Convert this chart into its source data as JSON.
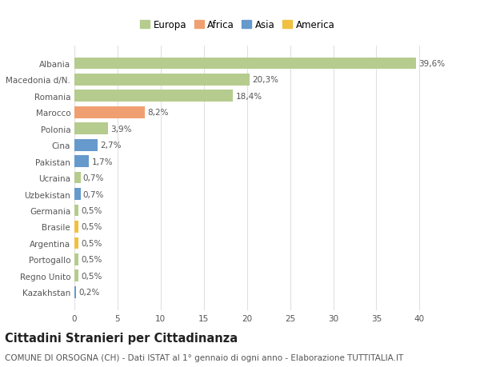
{
  "title": "Cittadini Stranieri per Cittadinanza",
  "subtitle": "COMUNE DI ORSOGNA (CH) - Dati ISTAT al 1° gennaio di ogni anno - Elaborazione TUTTITALIA.IT",
  "categories": [
    "Albania",
    "Macedonia d/N.",
    "Romania",
    "Marocco",
    "Polonia",
    "Cina",
    "Pakistan",
    "Ucraina",
    "Uzbekistan",
    "Germania",
    "Brasile",
    "Argentina",
    "Portogallo",
    "Regno Unito",
    "Kazakhstan"
  ],
  "values": [
    39.6,
    20.3,
    18.4,
    8.2,
    3.9,
    2.7,
    1.7,
    0.7,
    0.7,
    0.5,
    0.5,
    0.5,
    0.5,
    0.5,
    0.2
  ],
  "labels": [
    "39,6%",
    "20,3%",
    "18,4%",
    "8,2%",
    "3,9%",
    "2,7%",
    "1,7%",
    "0,7%",
    "0,7%",
    "0,5%",
    "0,5%",
    "0,5%",
    "0,5%",
    "0,5%",
    "0,2%"
  ],
  "continents": [
    "Europa",
    "Europa",
    "Europa",
    "Africa",
    "Europa",
    "Asia",
    "Asia",
    "Europa",
    "Asia",
    "Europa",
    "America",
    "America",
    "Europa",
    "Europa",
    "Asia"
  ],
  "continent_colors": {
    "Europa": "#b5cc8e",
    "Africa": "#f0a070",
    "Asia": "#6699cc",
    "America": "#f0c040"
  },
  "legend_entries": [
    "Europa",
    "Africa",
    "Asia",
    "America"
  ],
  "xlim": [
    0,
    42
  ],
  "xticks": [
    0,
    5,
    10,
    15,
    20,
    25,
    30,
    35,
    40
  ],
  "background_color": "#ffffff",
  "grid_color": "#e0e0e0",
  "bar_height": 0.72,
  "label_fontsize": 7.5,
  "title_fontsize": 10.5,
  "subtitle_fontsize": 7.5,
  "tick_fontsize": 7.5,
  "legend_fontsize": 8.5
}
